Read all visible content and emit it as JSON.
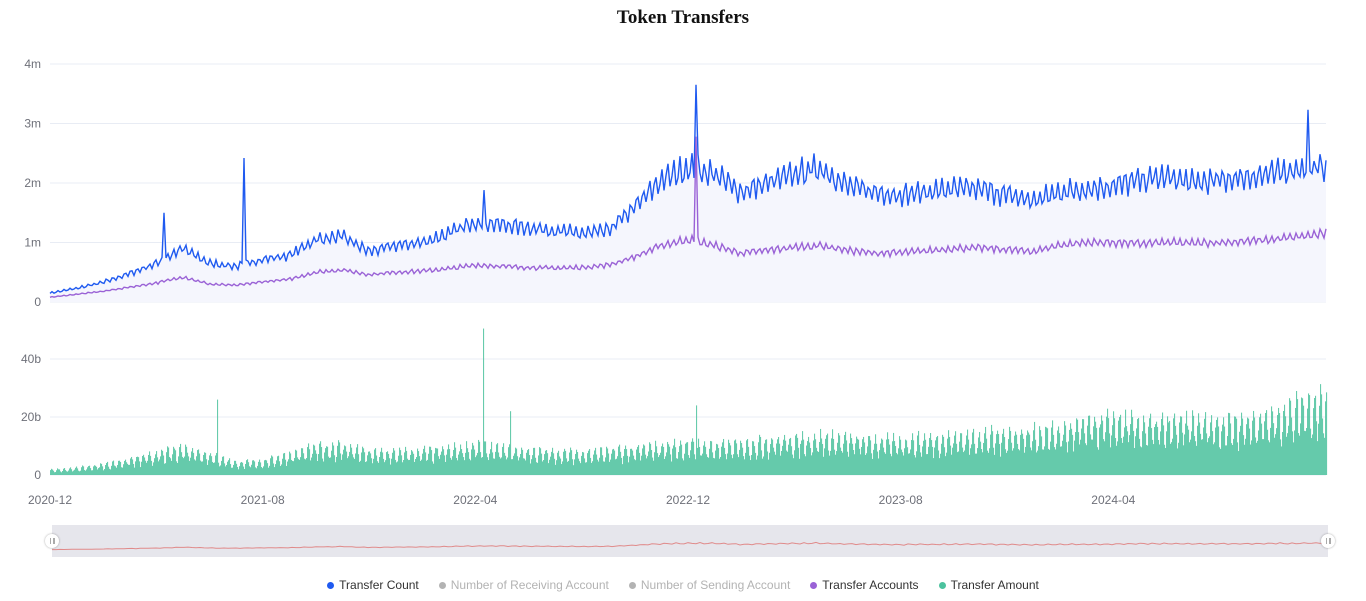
{
  "title": "Token Transfers",
  "colors": {
    "transfer_count": "#1f5af0",
    "transfer_accounts": "#9a62d6",
    "transfer_amount": "#4cc29e",
    "area_fill": "#f5f6fd",
    "grid": "#e8ecf4",
    "slider_bg": "#e6e6ec",
    "slider_line": "#e08a8a",
    "inactive": "#b3b3b3"
  },
  "legend": [
    {
      "label": "Transfer Count",
      "color": "#1f5af0",
      "active": true
    },
    {
      "label": "Number of Receiving Account",
      "color": "#b3b3b3",
      "active": false
    },
    {
      "label": "Number of Sending Account",
      "color": "#b3b3b3",
      "active": false
    },
    {
      "label": "Transfer Accounts",
      "color": "#9a62d6",
      "active": true
    },
    {
      "label": "Transfer Amount",
      "color": "#4cc29e",
      "active": true
    }
  ],
  "chart_data": [
    {
      "type": "line",
      "title": "Token Transfers",
      "xlabel": "",
      "ylabel": "",
      "y_ticks": [
        "0",
        "1m",
        "2m",
        "3m",
        "4m"
      ],
      "ylim": [
        0,
        4000000
      ],
      "grid": true,
      "x_ticks": [
        "2020-12",
        "2021-08",
        "2022-04",
        "2022-12",
        "2023-08",
        "2024-04"
      ],
      "x": [
        "2020-12",
        "2021-01",
        "2021-02",
        "2021-03",
        "2021-04",
        "2021-05",
        "2021-06",
        "2021-07",
        "2021-08",
        "2021-09",
        "2021-10",
        "2021-11",
        "2021-12",
        "2022-01",
        "2022-02",
        "2022-03",
        "2022-04",
        "2022-05",
        "2022-06",
        "2022-07",
        "2022-08",
        "2022-09",
        "2022-10",
        "2022-11",
        "2022-12",
        "2023-01",
        "2023-02",
        "2023-03",
        "2023-04",
        "2023-05",
        "2023-06",
        "2023-07",
        "2023-08",
        "2023-09",
        "2023-10",
        "2023-11",
        "2023-12",
        "2024-01",
        "2024-02",
        "2024-03",
        "2024-04",
        "2024-05",
        "2024-06",
        "2024-07",
        "2024-08",
        "2024-09",
        "2024-10",
        "2024-11",
        "2024-12"
      ],
      "series": [
        {
          "name": "Transfer Count",
          "values": [
            150000,
            230000,
            330000,
            480000,
            650000,
            900000,
            650000,
            600000,
            720000,
            780000,
            1050000,
            1100000,
            850000,
            950000,
            1000000,
            1150000,
            1350000,
            1300000,
            1250000,
            1200000,
            1150000,
            1200000,
            1600000,
            2050000,
            2250000,
            2150000,
            1850000,
            2000000,
            2150000,
            2250000,
            1950000,
            1850000,
            1800000,
            1850000,
            1900000,
            1900000,
            1800000,
            1700000,
            1850000,
            1900000,
            1950000,
            2050000,
            2100000,
            2000000,
            2050000,
            2100000,
            2150000,
            2250000,
            2250000
          ],
          "peaks": [
            {
              "x": "2021-04",
              "value": 1500000
            },
            {
              "x": "2021-07",
              "value": 2420000
            },
            {
              "x": "2022-04",
              "value": 1880000
            },
            {
              "x": "2022-12",
              "value": 3650000
            },
            {
              "x": "2024-11",
              "value": 3230000
            }
          ]
        },
        {
          "name": "Transfer Accounts",
          "values": [
            80000,
            130000,
            180000,
            250000,
            320000,
            420000,
            300000,
            280000,
            340000,
            380000,
            500000,
            540000,
            460000,
            500000,
            520000,
            560000,
            620000,
            600000,
            580000,
            570000,
            580000,
            620000,
            760000,
            950000,
            1050000,
            950000,
            820000,
            870000,
            920000,
            950000,
            870000,
            820000,
            830000,
            860000,
            900000,
            910000,
            880000,
            850000,
            960000,
            1000000,
            1000000,
            980000,
            1000000,
            990000,
            1000000,
            1020000,
            1050000,
            1100000,
            1150000
          ],
          "peaks": [
            {
              "x": "2022-12",
              "value": 2780000
            }
          ]
        }
      ]
    },
    {
      "type": "bar",
      "title": "",
      "y_ticks": [
        "0",
        "20b",
        "40b"
      ],
      "ylim": [
        0,
        40000000000
      ],
      "grid": true,
      "x_ticks": [
        "2020-12",
        "2021-08",
        "2022-04",
        "2022-12",
        "2023-08",
        "2024-04"
      ],
      "x": [
        "2020-12",
        "2021-01",
        "2021-02",
        "2021-03",
        "2021-04",
        "2021-05",
        "2021-06",
        "2021-07",
        "2021-08",
        "2021-09",
        "2021-10",
        "2021-11",
        "2021-12",
        "2022-01",
        "2022-02",
        "2022-03",
        "2022-04",
        "2022-05",
        "2022-06",
        "2022-07",
        "2022-08",
        "2022-09",
        "2022-10",
        "2022-11",
        "2022-12",
        "2023-01",
        "2023-02",
        "2023-03",
        "2023-04",
        "2023-05",
        "2023-06",
        "2023-07",
        "2023-08",
        "2023-09",
        "2023-10",
        "2023-11",
        "2023-12",
        "2024-01",
        "2024-02",
        "2024-03",
        "2024-04",
        "2024-05",
        "2024-06",
        "2024-07",
        "2024-08",
        "2024-09",
        "2024-10",
        "2024-11",
        "2024-12"
      ],
      "series": [
        {
          "name": "Transfer Amount",
          "values": [
            1500000000,
            2000000000,
            3000000000,
            4500000000,
            6000000000,
            8000000000,
            6000000000,
            3500000000,
            4000000000,
            6000000000,
            8000000000,
            8500000000,
            6500000000,
            6500000000,
            7000000000,
            7500000000,
            8500000000,
            7500000000,
            7000000000,
            6500000000,
            6500000000,
            7000000000,
            7500000000,
            8500000000,
            9000000000,
            8500000000,
            9000000000,
            10000000000,
            10500000000,
            11000000000,
            10500000000,
            10000000000,
            10000000000,
            10500000000,
            11000000000,
            11500000000,
            12000000000,
            12500000000,
            13000000000,
            15000000000,
            16000000000,
            15000000000,
            15000000000,
            15500000000,
            15500000000,
            16000000000,
            17000000000,
            21000000000,
            22000000000
          ],
          "peaks": [
            {
              "x": "2021-06",
              "value": 26000000000
            },
            {
              "x": "2022-04",
              "value": 50500000000
            },
            {
              "x": "2022-05",
              "value": 22000000000
            },
            {
              "x": "2022-12",
              "value": 24000000000
            },
            {
              "x": "2024-12",
              "value": 28500000000
            }
          ]
        }
      ]
    }
  ],
  "data_zoom": {
    "start_label": "2020-12",
    "end_label": "2024-12",
    "start_percent": 0,
    "end_percent": 100
  }
}
